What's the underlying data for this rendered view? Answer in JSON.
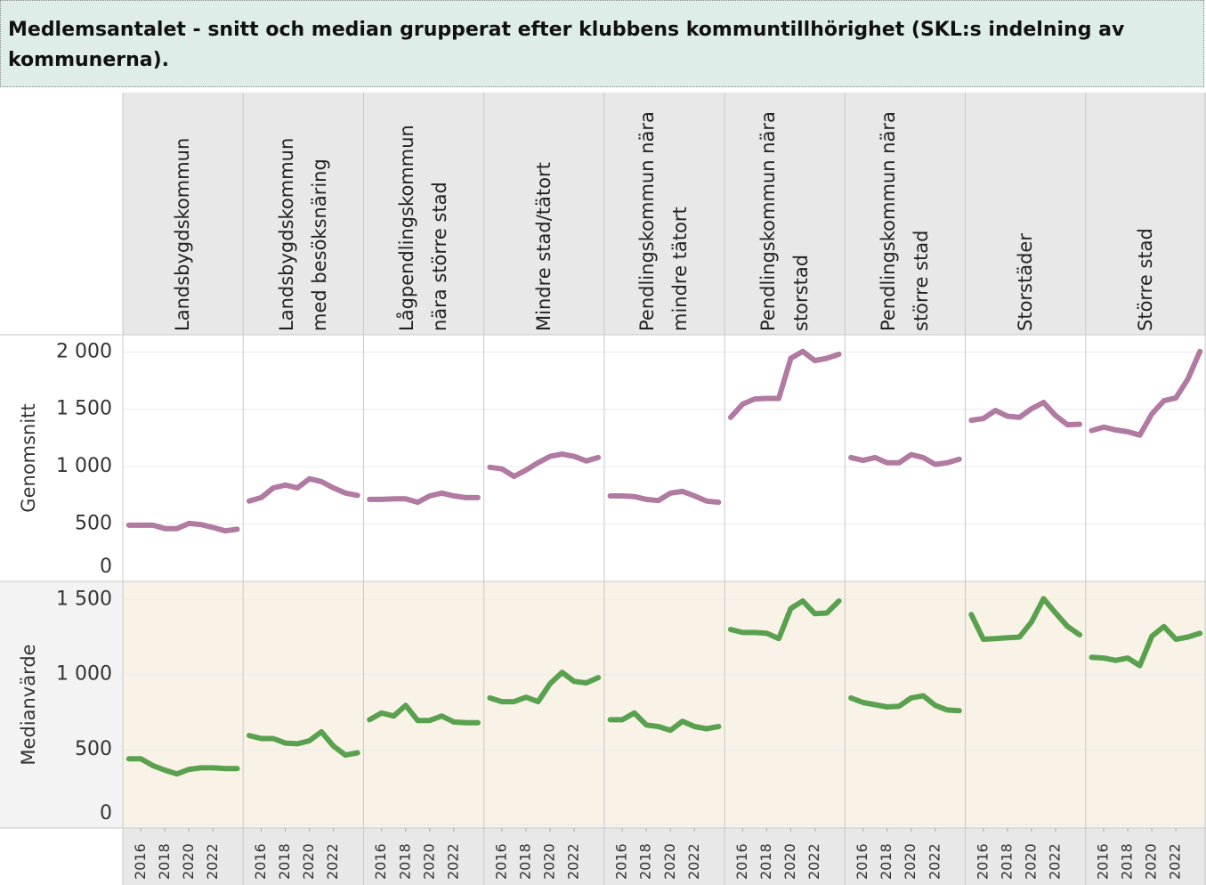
{
  "chart_data": {
    "type": "line",
    "title": "Medlemsantalet - snitt och median grupperat efter klubbens kommuntillhörighet (SKL:s indelning av kommunerna).",
    "categories": [
      "Landsbygdskommun",
      "Landsbygdskommun med besöksnäring",
      "Lågpendlingskommun nära större stad",
      "Mindre stad/tätort",
      "Pendlingskommun nära mindre tätort",
      "Pendlingskommun nära storstad",
      "Pendlingskommun nära större stad",
      "Storstäder",
      "Större stad"
    ],
    "x": [
      2015,
      2016,
      2017,
      2018,
      2019,
      2020,
      2021,
      2022,
      2023,
      2024
    ],
    "xlim": [
      2014.5,
      2024.5
    ],
    "xticks": [
      2016,
      2018,
      2020,
      2022
    ],
    "grid": true,
    "series": [
      {
        "name": "Genomsnitt",
        "color": "#b07aa1",
        "ylim": [
          0,
          2150
        ],
        "yticks": [
          0,
          500,
          {
            "value": 1000,
            "label": "1 000"
          },
          {
            "value": 1500,
            "label": "1 500"
          },
          {
            "value": 2000,
            "label": "2 000"
          }
        ],
        "values": [
          [
            490,
            490,
            490,
            460,
            460,
            505,
            495,
            470,
            440,
            455
          ],
          [
            700,
            730,
            815,
            840,
            815,
            895,
            870,
            815,
            770,
            750
          ],
          [
            715,
            715,
            720,
            720,
            690,
            745,
            770,
            745,
            730,
            730
          ],
          [
            995,
            980,
            915,
            970,
            1035,
            1090,
            1110,
            1090,
            1050,
            1080
          ],
          [
            745,
            745,
            740,
            715,
            705,
            770,
            785,
            745,
            700,
            690
          ],
          [
            1430,
            1545,
            1590,
            1595,
            1595,
            1945,
            2005,
            1925,
            1945,
            1980
          ],
          [
            1080,
            1055,
            1080,
            1035,
            1035,
            1105,
            1080,
            1020,
            1035,
            1065
          ],
          [
            1405,
            1420,
            1490,
            1440,
            1430,
            1505,
            1560,
            1445,
            1365,
            1370
          ],
          [
            1315,
            1345,
            1320,
            1305,
            1275,
            1460,
            1575,
            1600,
            1765,
            2005
          ]
        ]
      },
      {
        "name": "Medianvärde",
        "color": "#59a14f",
        "ylim": [
          -20,
          1620
        ],
        "yticks": [
          0,
          500,
          {
            "value": 1000,
            "label": "1 000"
          },
          {
            "value": 1500,
            "label": "1 500"
          }
        ],
        "values": [
          [
            440,
            440,
            395,
            365,
            340,
            370,
            380,
            380,
            375,
            375
          ],
          [
            595,
            575,
            575,
            545,
            540,
            560,
            620,
            525,
            465,
            480
          ],
          [
            700,
            745,
            725,
            795,
            695,
            695,
            725,
            685,
            680,
            680
          ],
          [
            845,
            820,
            820,
            850,
            820,
            940,
            1015,
            955,
            945,
            980
          ],
          [
            700,
            700,
            745,
            665,
            655,
            630,
            690,
            655,
            640,
            655
          ],
          [
            1300,
            1280,
            1280,
            1275,
            1240,
            1440,
            1490,
            1405,
            1410,
            1490
          ],
          [
            845,
            815,
            800,
            785,
            790,
            845,
            860,
            795,
            765,
            760
          ],
          [
            1400,
            1235,
            1240,
            1245,
            1250,
            1350,
            1505,
            1410,
            1320,
            1265
          ],
          [
            1115,
            1110,
            1095,
            1110,
            1060,
            1255,
            1320,
            1235,
            1250,
            1275
          ]
        ]
      }
    ]
  }
}
